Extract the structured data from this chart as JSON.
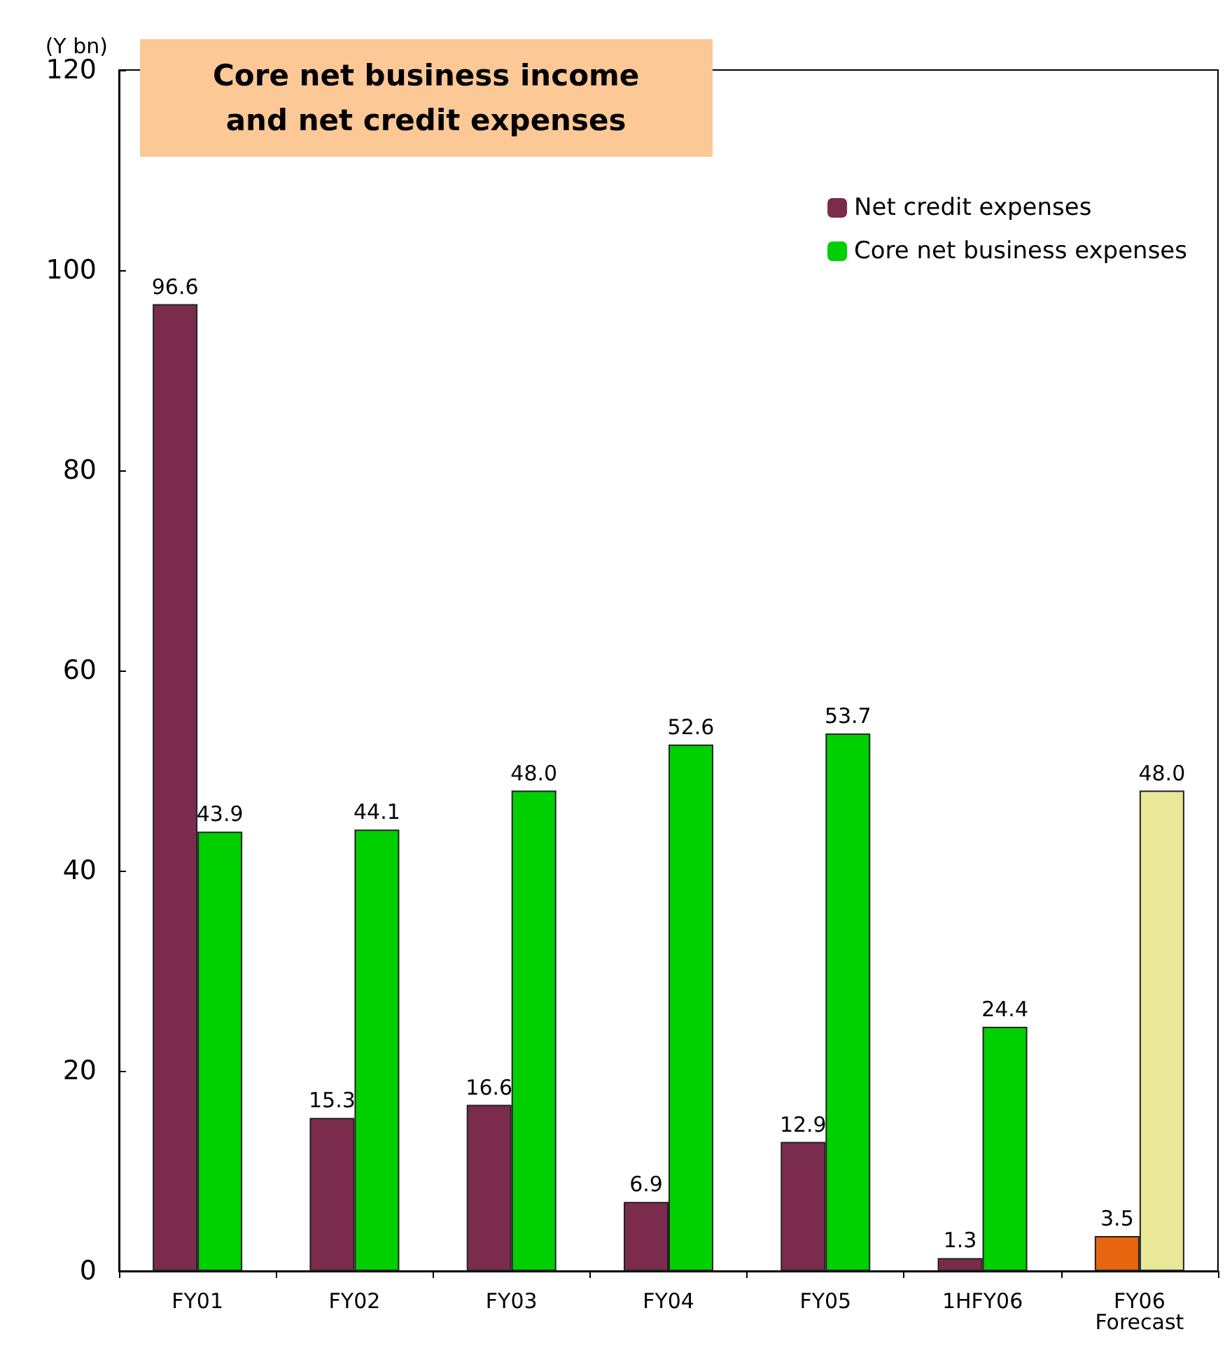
{
  "chart_data": {
    "type": "bar",
    "title": "Core net business income\nand net credit expenses",
    "ylabel": "(Y bn)",
    "categories": [
      "FY01",
      "FY02",
      "FY03",
      "FY04",
      "FY05",
      "1HFY06",
      "FY06\nForecast"
    ],
    "series": [
      {
        "name": "Net credit expenses",
        "color": "#7b2c4c",
        "colors": [
          "#7b2c4c",
          "#7b2c4c",
          "#7b2c4c",
          "#7b2c4c",
          "#7b2c4c",
          "#7b2c4c",
          "#e8650f"
        ],
        "values": [
          96.6,
          15.3,
          16.6,
          6.9,
          12.9,
          1.3,
          3.5
        ],
        "value_labels": [
          "96.6",
          "15.3",
          "16.6",
          "6.9",
          "12.9",
          "1.3",
          "3.5"
        ]
      },
      {
        "name": "Core net business expenses",
        "color": "#00d000",
        "colors": [
          "#00d000",
          "#00d000",
          "#00d000",
          "#00d000",
          "#00d000",
          "#00d000",
          "#e8e898"
        ],
        "values": [
          43.9,
          44.1,
          48.0,
          52.6,
          53.7,
          24.4,
          48.0
        ],
        "value_labels": [
          "43.9",
          "44.1",
          "48.0",
          "52.6",
          "53.7",
          "24.4",
          "48.0"
        ]
      }
    ],
    "ylim": [
      0,
      120
    ],
    "yticks": [
      0,
      20,
      40,
      60,
      80,
      100,
      120
    ],
    "grid": false,
    "legend": "top right"
  }
}
